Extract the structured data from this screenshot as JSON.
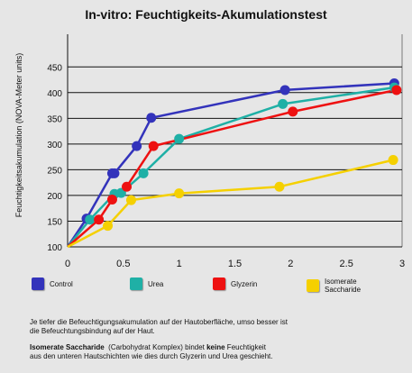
{
  "chart_data": {
    "type": "line",
    "title": "In-vitro: Feuchtigkeits-Akumulationstest",
    "ylabel": "Feuchtigkeitsakumulation (NOVA-Meter units)",
    "xlabel": "",
    "xlim": [
      0,
      3
    ],
    "ylim": [
      100,
      450
    ],
    "x_ticks": [
      "0",
      "0.5",
      "1",
      "1.5",
      "2",
      "2.5",
      "3"
    ],
    "y_ticks": [
      "100",
      "150",
      "200",
      "250",
      "300",
      "350",
      "400",
      "450"
    ],
    "grid": true,
    "legend_position": "bottom",
    "series": [
      {
        "name": "Control",
        "color": "#3333bb",
        "points": [
          [
            0,
            100
          ],
          [
            0.17,
            155
          ],
          [
            0.4,
            243
          ],
          [
            0.42,
            243
          ],
          [
            0.62,
            296
          ],
          [
            0.75,
            351
          ],
          [
            1.95,
            405
          ],
          [
            2.93,
            418
          ]
        ]
      },
      {
        "name": "Urea",
        "color": "#1fb0a6",
        "points": [
          [
            0,
            100
          ],
          [
            0.2,
            153
          ],
          [
            0.42,
            203
          ],
          [
            0.48,
            205
          ],
          [
            0.68,
            243
          ],
          [
            1.0,
            310
          ],
          [
            1.93,
            378
          ],
          [
            2.93,
            410
          ]
        ]
      },
      {
        "name": "Glyzerin",
        "color": "#ee1111",
        "points": [
          [
            0,
            100
          ],
          [
            0.28,
            153
          ],
          [
            0.4,
            192
          ],
          [
            0.53,
            217
          ],
          [
            0.77,
            296
          ],
          [
            2.02,
            363
          ],
          [
            2.95,
            405
          ]
        ]
      },
      {
        "name": "Isomerate\nSaccharide",
        "color": "#f5d000",
        "points": [
          [
            0,
            100
          ],
          [
            0.36,
            141
          ],
          [
            0.57,
            191
          ],
          [
            1.0,
            204
          ],
          [
            1.9,
            217
          ],
          [
            2.92,
            269
          ]
        ]
      }
    ]
  },
  "notes": {
    "line1": "Je tiefer die Befeuchtigungsakumulation auf der Hautoberfläche, umso besser ist",
    "line2": "die Befeuchtungsbindung auf der Haut.",
    "line3_bold_a": "Isomerate Saccharide",
    "line3_mid": "  (Carbohydrat Komplex) bindet ",
    "line3_bold_b": "keine",
    "line3_end": " Feuchtigkeit",
    "line4": "aus den unteren Hautschichten wie dies durch Glyzerin und Urea geschieht."
  }
}
